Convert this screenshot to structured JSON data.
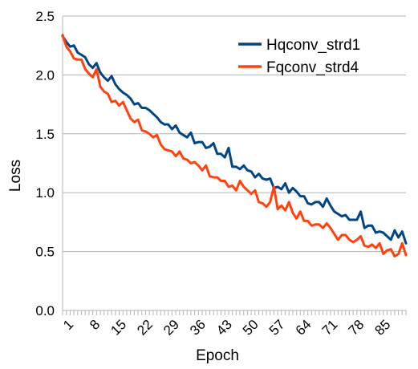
{
  "chart_data": {
    "type": "line",
    "title": "",
    "xlabel": "Epoch",
    "ylabel": "Loss",
    "ylim": [
      0,
      2.5
    ],
    "yticks": [
      "0.0",
      "0.5",
      "1.0",
      "1.5",
      "2.0",
      "2.5"
    ],
    "xlim": [
      1,
      92
    ],
    "xticks": [
      "1",
      "8",
      "15",
      "22",
      "29",
      "36",
      "43",
      "50",
      "57",
      "64",
      "71",
      "78",
      "85"
    ],
    "grid": "horizontal",
    "legend_position": "top-right",
    "x": [
      1,
      2,
      3,
      4,
      5,
      6,
      7,
      8,
      9,
      10,
      11,
      12,
      13,
      14,
      15,
      16,
      17,
      18,
      19,
      20,
      21,
      22,
      23,
      24,
      25,
      26,
      27,
      28,
      29,
      30,
      31,
      32,
      33,
      34,
      35,
      36,
      37,
      38,
      39,
      40,
      41,
      42,
      43,
      44,
      45,
      46,
      47,
      48,
      49,
      50,
      51,
      52,
      53,
      54,
      55,
      56,
      57,
      58,
      59,
      60,
      61,
      62,
      63,
      64,
      65,
      66,
      67,
      68,
      69,
      70,
      71,
      72,
      73,
      74,
      75,
      76,
      77,
      78,
      79,
      80,
      81,
      82,
      83,
      84,
      85,
      86,
      87,
      88,
      89,
      90,
      91,
      92
    ],
    "series": [
      {
        "name": "Hqconv_strd1",
        "color": "#004586",
        "values": [
          2.33,
          2.28,
          2.24,
          2.25,
          2.19,
          2.17,
          2.15,
          2.09,
          2.06,
          2.1,
          2.02,
          1.98,
          1.95,
          1.99,
          1.92,
          1.88,
          1.85,
          1.83,
          1.8,
          1.75,
          1.76,
          1.72,
          1.72,
          1.7,
          1.67,
          1.64,
          1.6,
          1.58,
          1.58,
          1.54,
          1.57,
          1.51,
          1.49,
          1.47,
          1.51,
          1.42,
          1.43,
          1.43,
          1.38,
          1.39,
          1.42,
          1.33,
          1.33,
          1.3,
          1.38,
          1.22,
          1.22,
          1.2,
          1.23,
          1.19,
          1.18,
          1.13,
          1.16,
          1.12,
          1.11,
          1.12,
          1.04,
          1.05,
          1.03,
          1.08,
          1.0,
          1.04,
          1.01,
          0.97,
          0.97,
          0.91,
          0.9,
          0.92,
          0.92,
          0.88,
          0.95,
          0.89,
          0.84,
          0.82,
          0.8,
          0.81,
          0.77,
          0.77,
          0.77,
          0.84,
          0.7,
          0.72,
          0.72,
          0.66,
          0.67,
          0.66,
          0.63,
          0.6,
          0.68,
          0.62,
          0.67,
          0.57
        ]
      },
      {
        "name": "Fqconv_strd4",
        "color": "#ff420e",
        "values": [
          2.34,
          2.24,
          2.2,
          2.14,
          2.13,
          2.13,
          2.05,
          2.01,
          1.98,
          2.05,
          1.9,
          1.86,
          1.84,
          1.77,
          1.78,
          1.74,
          1.77,
          1.7,
          1.63,
          1.6,
          1.62,
          1.53,
          1.52,
          1.5,
          1.47,
          1.49,
          1.41,
          1.37,
          1.36,
          1.35,
          1.31,
          1.35,
          1.29,
          1.28,
          1.25,
          1.26,
          1.23,
          1.19,
          1.23,
          1.14,
          1.13,
          1.13,
          1.1,
          1.1,
          1.05,
          1.06,
          1.02,
          1.1,
          1.05,
          1.02,
          0.99,
          1.02,
          0.92,
          0.91,
          0.88,
          0.92,
          1.05,
          0.86,
          0.89,
          0.85,
          0.92,
          0.83,
          0.78,
          0.84,
          0.76,
          0.76,
          0.72,
          0.73,
          0.73,
          0.7,
          0.74,
          0.7,
          0.65,
          0.6,
          0.64,
          0.64,
          0.6,
          0.58,
          0.6,
          0.63,
          0.55,
          0.54,
          0.56,
          0.53,
          0.57,
          0.48,
          0.51,
          0.52,
          0.46,
          0.48,
          0.57,
          0.47
        ]
      }
    ]
  }
}
